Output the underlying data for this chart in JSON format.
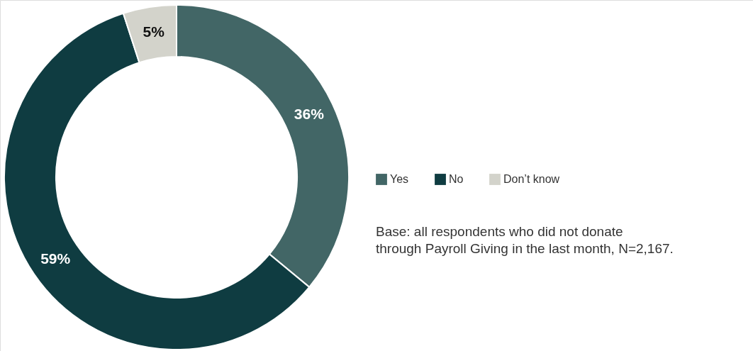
{
  "chart_data": {
    "type": "donut",
    "categories": [
      "Yes",
      "No",
      "Don’t know"
    ],
    "values": [
      36,
      59,
      5
    ],
    "colors": [
      "#426666",
      "#0f3c41",
      "#d3d3cb"
    ],
    "value_labels": [
      "36%",
      "59%",
      "5%"
    ],
    "legend": "right",
    "annotations": [
      "Base: all respondents who did not donate\nthrough Payroll Giving in the last month, N=2,167."
    ]
  }
}
